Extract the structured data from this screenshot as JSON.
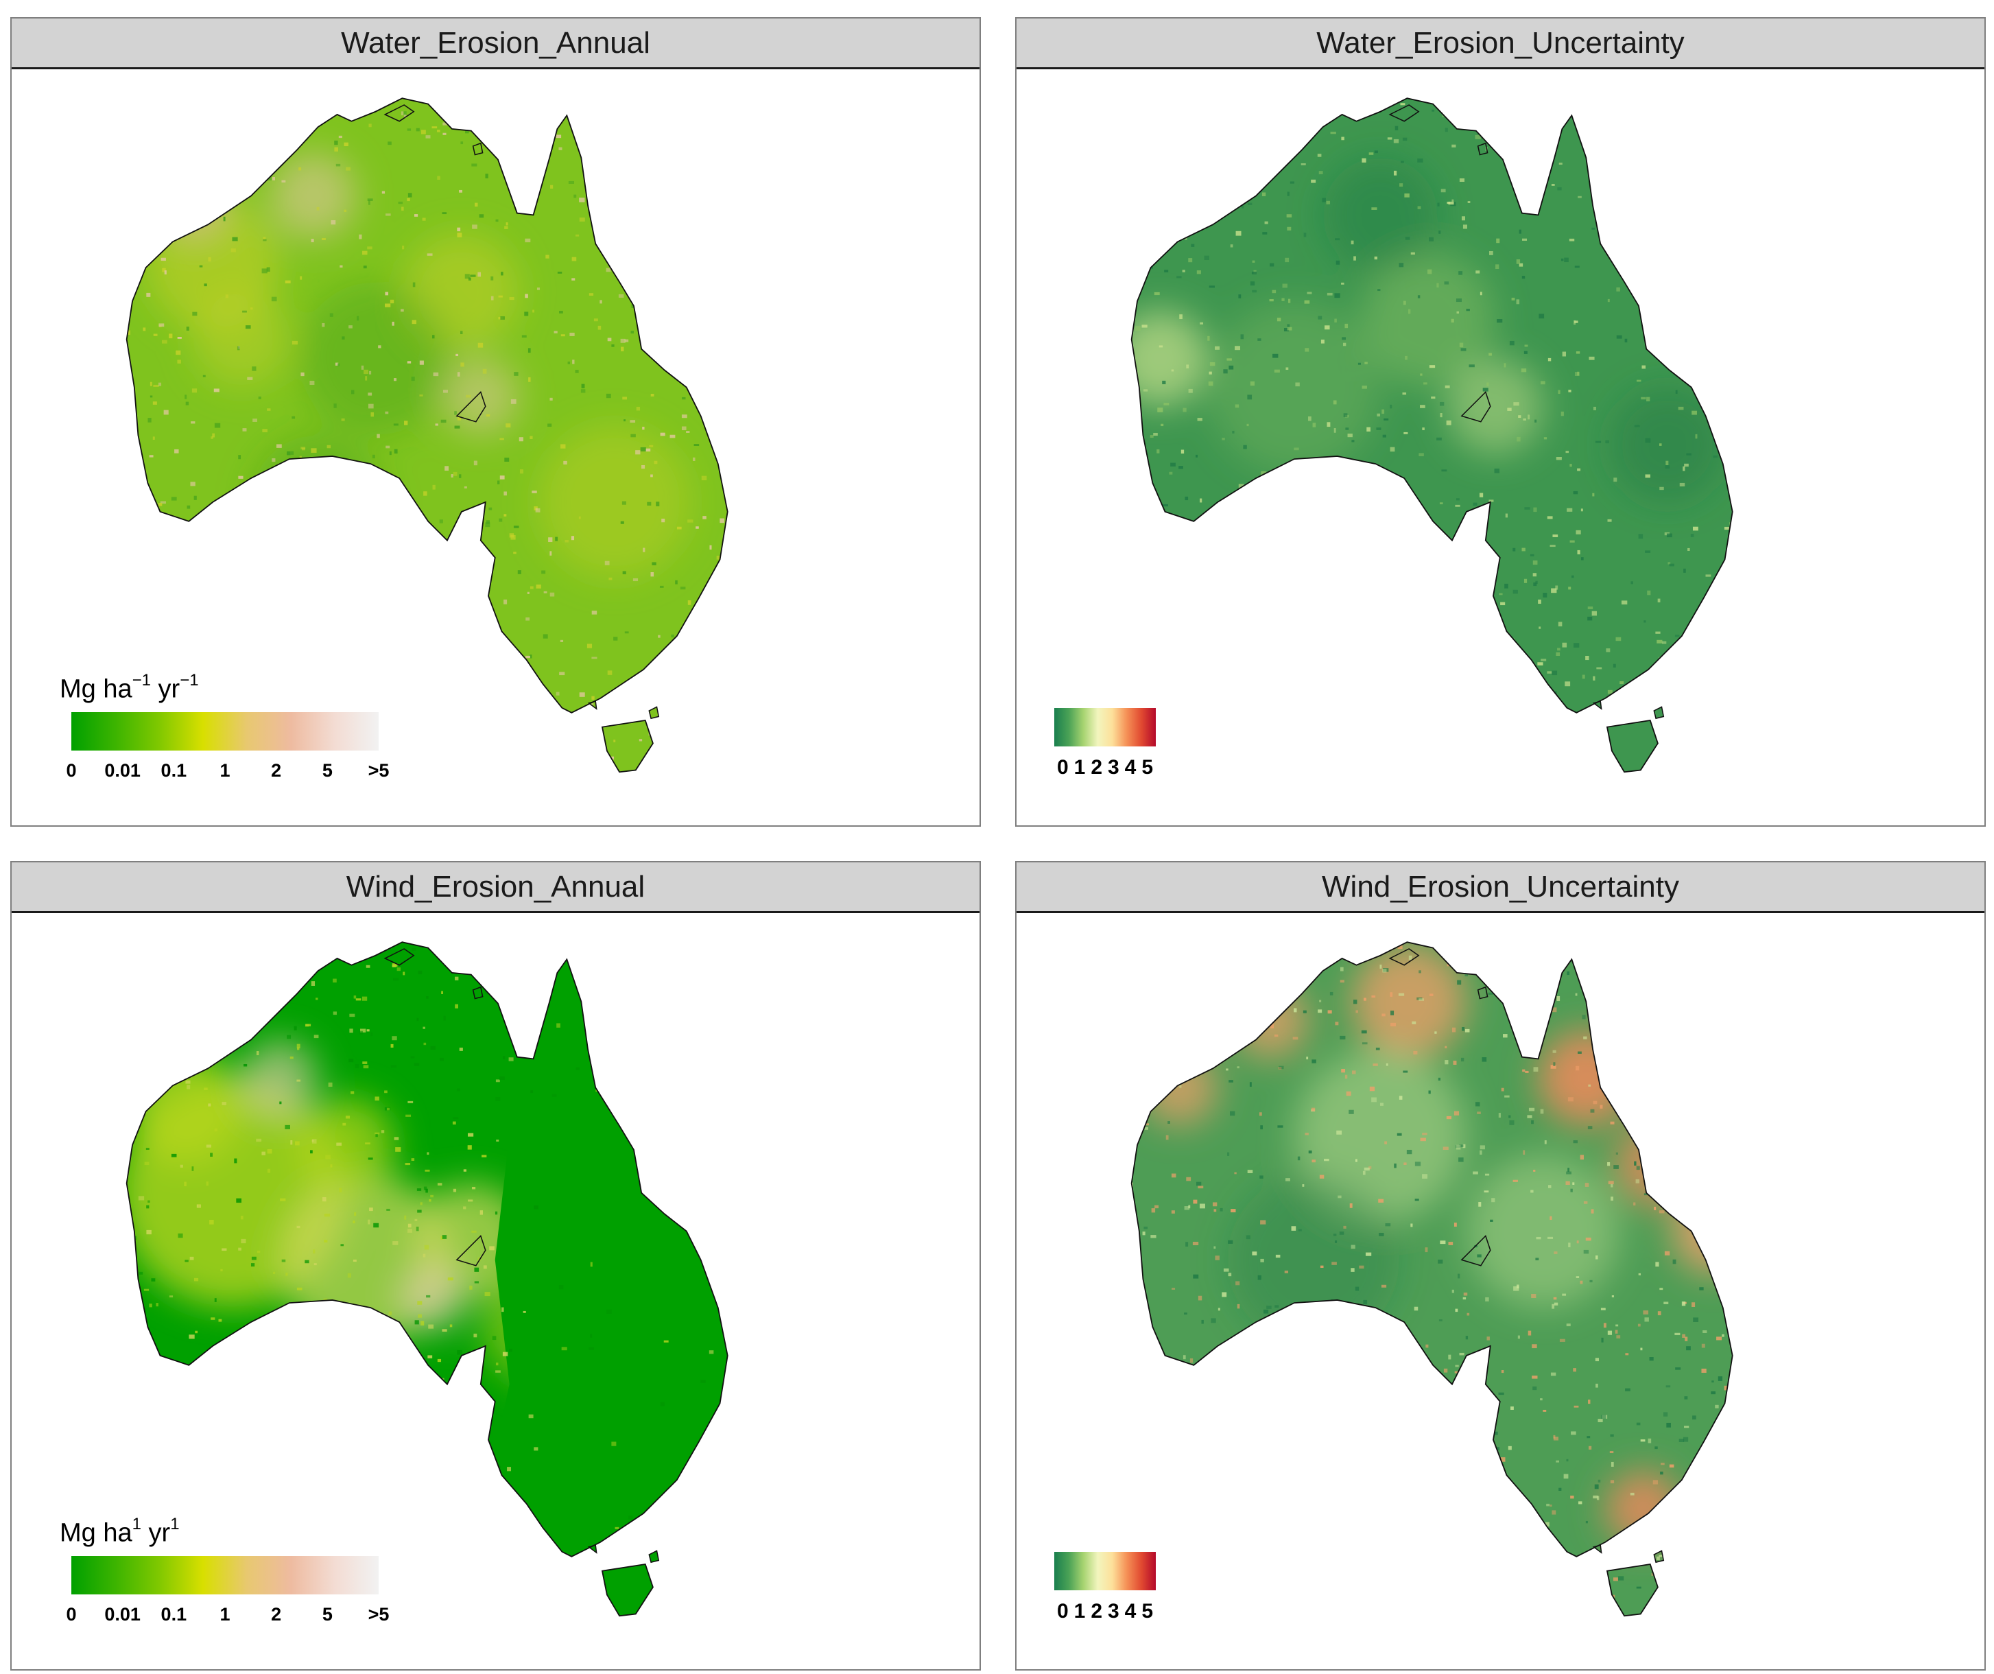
{
  "panels": [
    {
      "title": "Water_Erosion_Annual",
      "legend_kind": "rate",
      "legend_title": {
        "prefix": "Mg ha",
        "exp1": "−1",
        "mid": " yr",
        "exp2": "−1"
      },
      "ticks": [
        "0",
        "0.01",
        "0.1",
        "1",
        "2",
        "5",
        ">5"
      ],
      "palette": [
        "#00a000",
        "#3cb400",
        "#80c800",
        "#d8df00",
        "#e8c870",
        "#eebba0",
        "#f3dcd3",
        "#f2f2f2"
      ],
      "map_colors": {
        "base": "#7fc31e",
        "dark": "#3f9f1c",
        "light": "#c8d22a",
        "highlight": "#e6c9a5",
        "hotspot": "#e0b8a0"
      }
    },
    {
      "title": "Water_Erosion_Uncertainty",
      "legend_kind": "uncertainty",
      "ticks": [
        "0",
        "1",
        "2",
        "3",
        "4",
        "5"
      ],
      "palette": [
        "#1a7f4e",
        "#4aa256",
        "#a6d370",
        "#f2f5be",
        "#fde09a",
        "#f59056",
        "#e14a31",
        "#b4092a"
      ],
      "map_colors": {
        "base": "#3e964f",
        "dark": "#1f7a45",
        "light": "#8ec365",
        "highlight": "#c6e08c",
        "hotspot": "#a9d07a"
      }
    },
    {
      "title": "Wind_Erosion_Annual",
      "legend_kind": "rate",
      "legend_title": {
        "prefix": "Mg ha",
        "exp1": "1",
        "mid": " yr",
        "exp2": "1"
      },
      "ticks": [
        "0",
        "0.01",
        "0.1",
        "1",
        "2",
        "5",
        ">5"
      ],
      "palette": [
        "#00a000",
        "#3cb400",
        "#80c800",
        "#d8df00",
        "#e8c870",
        "#eebba0",
        "#f3dcd3",
        "#f2f2f2"
      ],
      "map_colors": {
        "base": "#00a000",
        "dark": "#009400",
        "light": "#b8d520",
        "highlight": "#d2d860",
        "hotspot": "#e8cfb0"
      }
    },
    {
      "title": "Wind_Erosion_Uncertainty",
      "legend_kind": "uncertainty",
      "ticks": [
        "0",
        "1",
        "2",
        "3",
        "4",
        "5"
      ],
      "palette": [
        "#1a7f4e",
        "#4aa256",
        "#a6d370",
        "#f2f5be",
        "#fde09a",
        "#f59056",
        "#e14a31",
        "#b4092a"
      ],
      "map_colors": {
        "base": "#4e9d55",
        "dark": "#1f7a45",
        "light": "#cbe59a",
        "highlight": "#f1a06a",
        "hotspot": "#ee8a5c"
      }
    }
  ]
}
